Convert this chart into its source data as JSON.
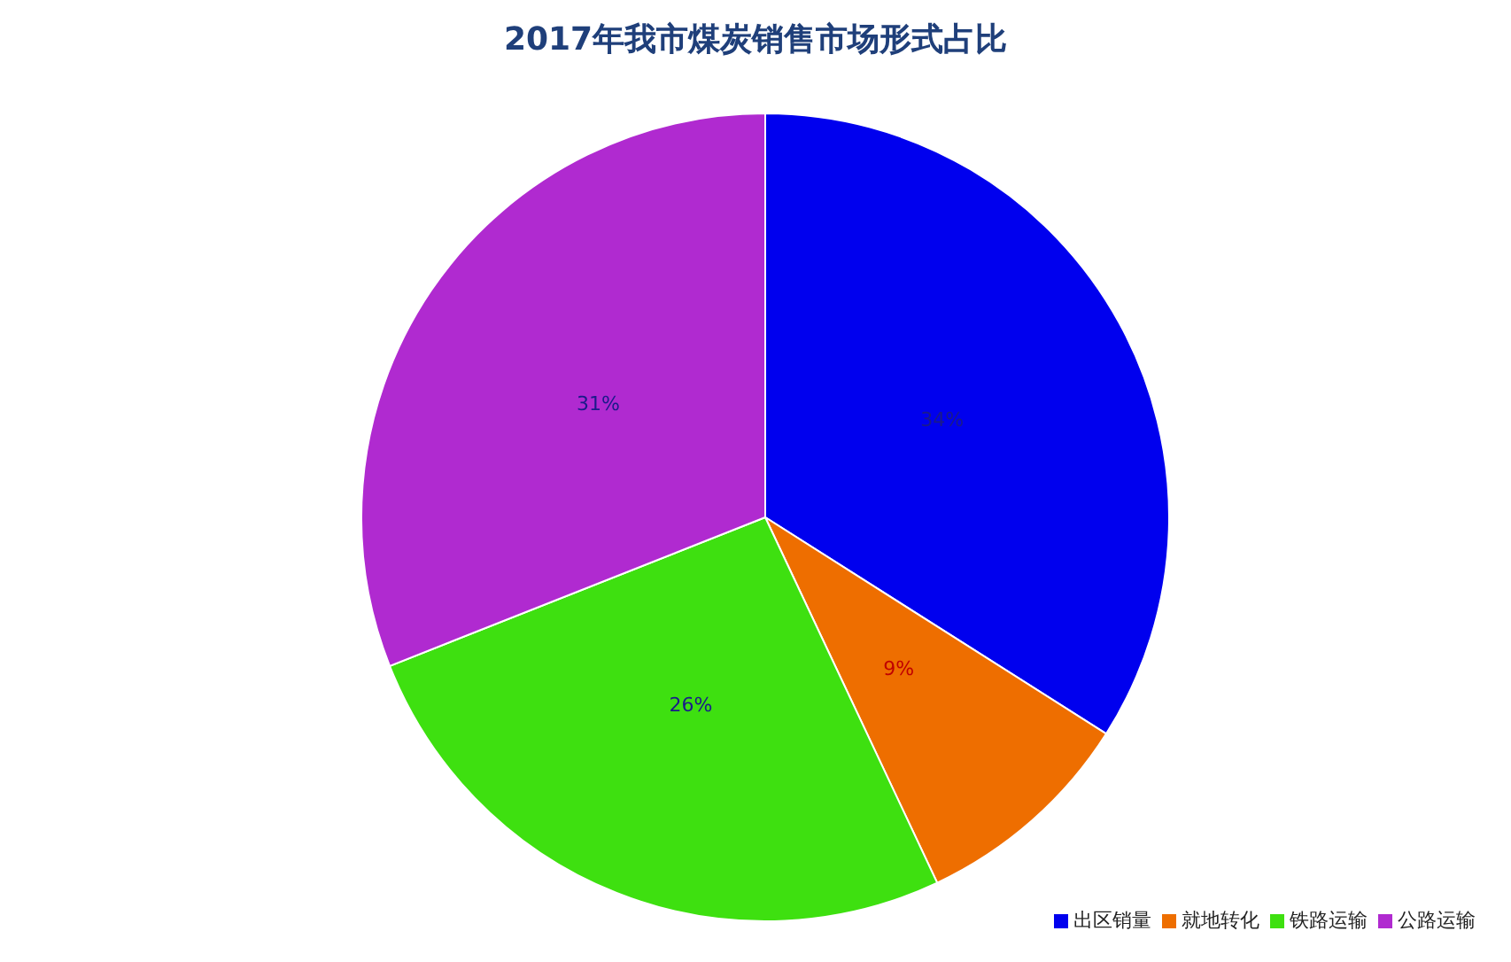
{
  "chart_data": {
    "type": "pie",
    "title": "2017年我市煤炭销售市场形式占比",
    "categories": [
      "出区销量",
      "就地转化",
      "铁路运输",
      "公路运输"
    ],
    "values": [
      34,
      9,
      26,
      31
    ],
    "colors": [
      "#0000ee",
      "#ee6e00",
      "#3ee010",
      "#b02ad0"
    ],
    "value_labels": [
      "34%",
      "9%",
      "26%",
      "31%"
    ],
    "legend": "bottom right"
  }
}
